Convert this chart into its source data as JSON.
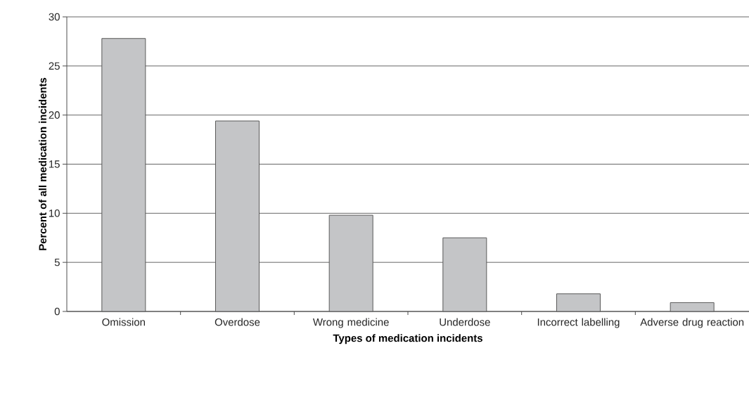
{
  "chart_data": {
    "type": "bar",
    "xlabel": "Types of medication incidents",
    "ylabel": "Percent of all medication incidents",
    "categories": [
      "Omission",
      "Overdose",
      "Wrong medicine",
      "Underdose",
      "Incorrect labelling",
      "Adverse drug reaction"
    ],
    "values": [
      27.8,
      19.4,
      9.8,
      7.5,
      1.8,
      0.9
    ],
    "color": "#c4c5c7",
    "ylim": [
      0,
      30
    ],
    "yticks": [
      0,
      5,
      10,
      15,
      20,
      25,
      30
    ],
    "grid": "y"
  }
}
